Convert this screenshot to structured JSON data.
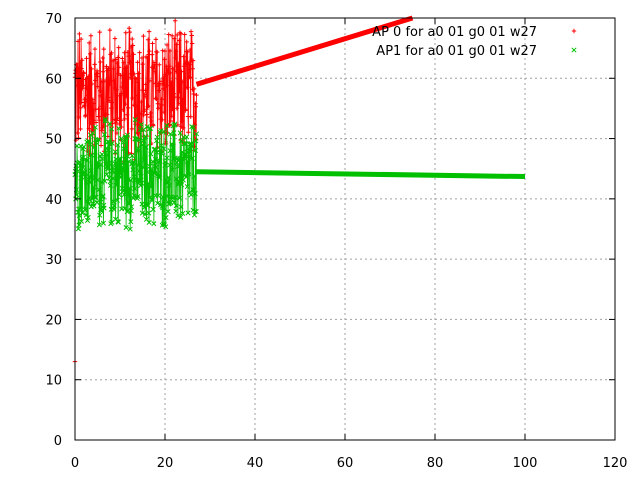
{
  "chart_data": {
    "type": "scatter",
    "title": "",
    "xlabel": "",
    "ylabel": "",
    "xlim": [
      0,
      120
    ],
    "ylim": [
      0,
      70
    ],
    "x_ticks": [
      0,
      20,
      40,
      60,
      80,
      100,
      120
    ],
    "y_ticks": [
      0,
      10,
      20,
      30,
      40,
      50,
      60,
      70
    ],
    "x_tick_labels": [
      "0",
      "20",
      "40",
      "60",
      "80",
      "100",
      "120"
    ],
    "y_tick_labels": [
      "0",
      "10",
      "20",
      "30",
      "40",
      "50",
      "60",
      "70"
    ],
    "grid": true,
    "legend_position": "top-right",
    "series": [
      {
        "name": "AP 0 for a0 01 g0 01 w27",
        "color": "#ff0000",
        "marker": "+",
        "noisy_segment": {
          "x_range": [
            0,
            27
          ],
          "y_range": [
            45,
            70
          ],
          "start_value": 13
        },
        "trend_segment": {
          "x": [
            27,
            75
          ],
          "y": [
            59,
            70
          ]
        }
      },
      {
        "name": "AP1 for a0 01 g0 01 w27",
        "color": "#00c000",
        "marker": "x",
        "noisy_segment": {
          "x_range": [
            0,
            27
          ],
          "y_range": [
            34,
            54
          ]
        },
        "trend_segment": {
          "x": [
            27,
            100
          ],
          "y": [
            44.5,
            43.7
          ]
        }
      }
    ]
  }
}
